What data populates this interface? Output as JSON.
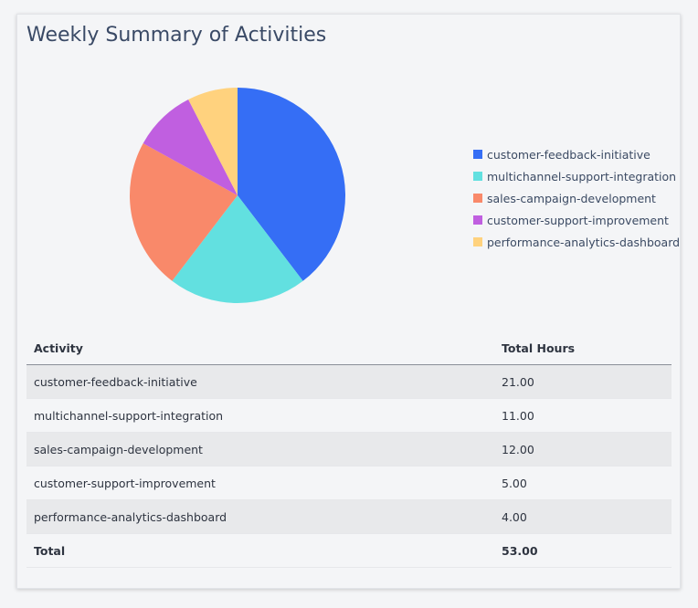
{
  "title": "Weekly Summary of Activities",
  "chart_data": {
    "type": "pie",
    "title": "",
    "legend_position": "right",
    "categories": [
      "customer-feedback-initiative",
      "multichannel-support-integration",
      "sales-campaign-development",
      "customer-support-improvement",
      "performance-analytics-dashboard"
    ],
    "values": [
      21,
      11,
      12,
      5,
      4
    ],
    "colors": [
      "#356ef5",
      "#62e0e0",
      "#f9896a",
      "#c05fe0",
      "#ffd27e"
    ]
  },
  "table": {
    "headers": [
      "Activity",
      "Total Hours"
    ],
    "rows": [
      [
        "customer-feedback-initiative",
        "21.00"
      ],
      [
        "multichannel-support-integration",
        "11.00"
      ],
      [
        "sales-campaign-development",
        "12.00"
      ],
      [
        "customer-support-improvement",
        "5.00"
      ],
      [
        "performance-analytics-dashboard",
        "4.00"
      ]
    ],
    "total": [
      "Total",
      "53.00"
    ]
  }
}
